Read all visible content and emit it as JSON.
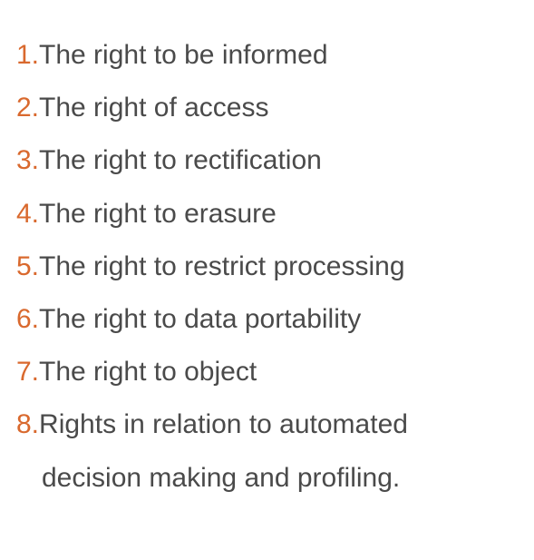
{
  "rights": {
    "accent_color": "#d9692e",
    "text_color": "#4a4a4a",
    "items": [
      {
        "number": "1.",
        "text": "The right to be informed"
      },
      {
        "number": "2.",
        "text": "The right of access"
      },
      {
        "number": "3.",
        "text": "The right to rectification"
      },
      {
        "number": "4.",
        "text": "The right to erasure"
      },
      {
        "number": "5.",
        "text": "The right to restrict processing"
      },
      {
        "number": "6.",
        "text": "The right to data portability"
      },
      {
        "number": "7.",
        "text": "The right to object"
      },
      {
        "number": "8.",
        "text": "Rights in relation to automated",
        "text_line2": "decision making and profiling."
      }
    ]
  }
}
